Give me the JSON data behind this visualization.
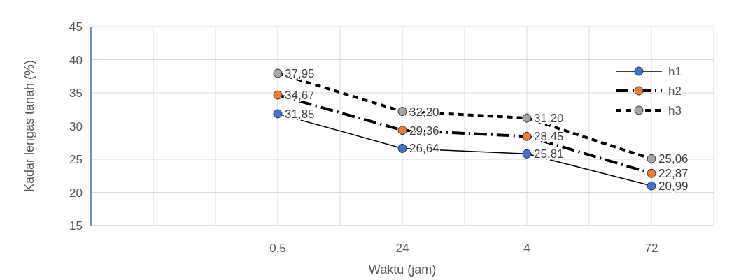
{
  "chart_data": {
    "type": "line",
    "xlabel": "Waktu (jam)",
    "ylabel": "Kadar lengas tanah (%)",
    "categories": [
      null,
      "0,5",
      "24",
      "4",
      "72"
    ],
    "series": [
      {
        "name": "h1",
        "color": "#4472c4",
        "line_style": "solid",
        "values": [
          null,
          31.85,
          26.64,
          25.81,
          20.99
        ],
        "value_labels": [
          null,
          "31,85",
          "26,64",
          "25,81",
          "20,99"
        ]
      },
      {
        "name": "h2",
        "color": "#ed7d31",
        "line_style": "dashed",
        "values": [
          null,
          34.67,
          29.36,
          28.45,
          22.87
        ],
        "value_labels": [
          null,
          "34,67",
          "29,36",
          "28,45",
          "22,87"
        ]
      },
      {
        "name": "h3",
        "color": "#a5a5a5",
        "line_style": "dotted",
        "values": [
          null,
          37.95,
          32.2,
          31.2,
          25.06
        ],
        "value_labels": [
          null,
          "37,95",
          "32,20",
          "31,20",
          "25,06"
        ]
      }
    ],
    "ylim": [
      15,
      45
    ],
    "yticks": [
      15,
      20,
      25,
      30,
      35,
      40,
      45
    ],
    "grid": true,
    "legend": "top right",
    "marker": "circle"
  }
}
